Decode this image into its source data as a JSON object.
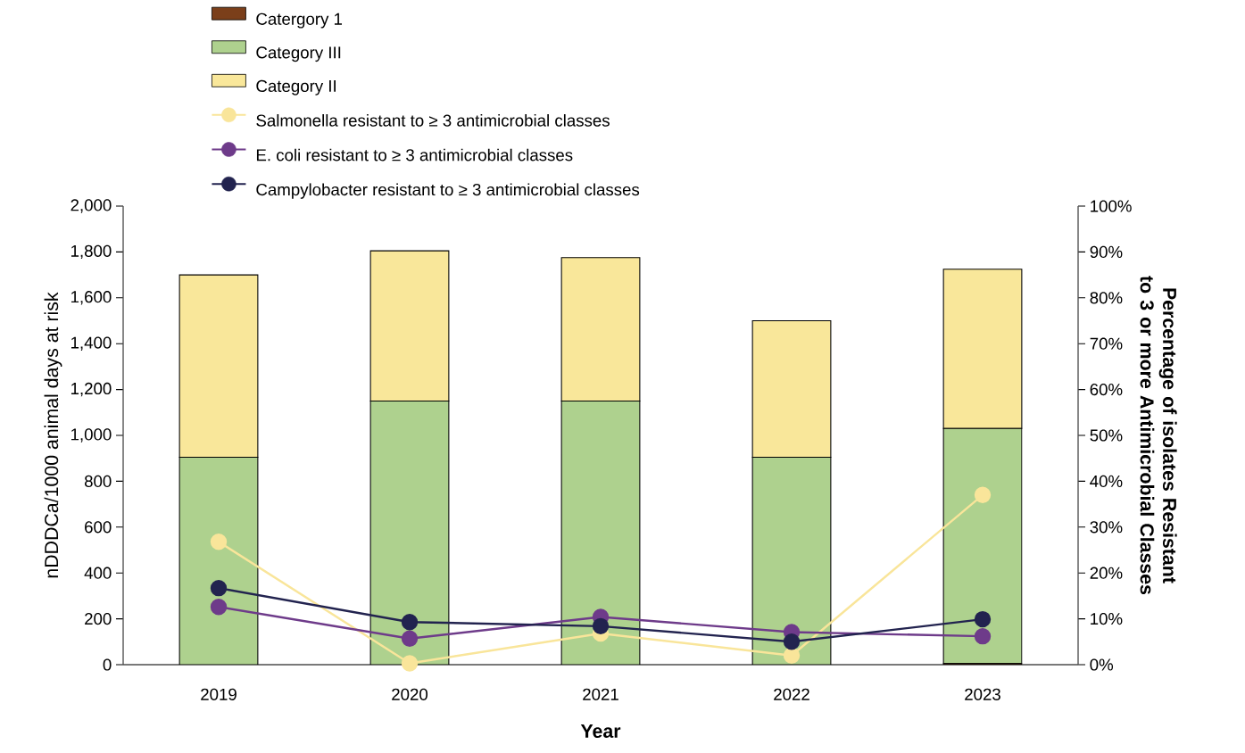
{
  "chart_data": {
    "type": "bar",
    "stacked": true,
    "xlabel": "Year",
    "ylabel": "nDDDCa/1000  animal days at risk",
    "y2label": "Percentage of isolates Resistant to 3 or more Antimicrobial Classes",
    "categories": [
      "2019",
      "2020",
      "2021",
      "2022",
      "2023"
    ],
    "series": [
      {
        "name": "Catergory 1",
        "color": "#7b3f1a",
        "values": [
          0,
          0,
          0,
          0,
          5
        ]
      },
      {
        "name": "Category III",
        "color": "#aed18e",
        "values": [
          905,
          1150,
          1150,
          905,
          1025
        ]
      },
      {
        "name": "Category II",
        "color": "#f9e79a",
        "values": [
          795,
          655,
          625,
          595,
          695
        ]
      },
      {
        "name": "Salmonella resistant to ≥ 3 antimicrobial classes",
        "type": "line",
        "axis": "y2",
        "color": "#f9e59a",
        "values": [
          26.8,
          0.3,
          6.8,
          2.0,
          37.0
        ]
      },
      {
        "name": "E. coli resistant to ≥ 3 antimicrobial classes",
        "type": "line",
        "axis": "y2",
        "color": "#6e3b8a",
        "values": [
          12.6,
          5.7,
          10.4,
          7.1,
          6.2
        ]
      },
      {
        "name": "Campylobacter resistant to ≥ 3 antimicrobial classes",
        "type": "line",
        "axis": "y2",
        "color": "#22234f",
        "values": [
          16.7,
          9.3,
          8.4,
          5.0,
          9.9
        ]
      }
    ],
    "marker": "circle",
    "legend": "top left",
    "ylim": [
      0,
      2000
    ],
    "yticks": [
      0,
      200,
      400,
      600,
      800,
      {
        "value": 1000,
        "label": "1,000"
      },
      {
        "value": 1200,
        "label": "1,200"
      },
      {
        "value": 1400,
        "label": "1,400"
      },
      {
        "value": 1600,
        "label": "1,600"
      },
      {
        "value": 1800,
        "label": "1,800"
      },
      {
        "value": 2000,
        "label": "2,000"
      }
    ],
    "y2lim": [
      0,
      100
    ],
    "y2ticks": [
      {
        "value": 0,
        "label": "0%"
      },
      {
        "value": 10,
        "label": "10%"
      },
      {
        "value": 20,
        "label": "20%"
      },
      {
        "value": 30,
        "label": "30%"
      },
      {
        "value": 40,
        "label": "40%"
      },
      {
        "value": 50,
        "label": "50%"
      },
      {
        "value": 60,
        "label": "60%"
      },
      {
        "value": 70,
        "label": "70%"
      },
      {
        "value": 80,
        "label": "80%"
      },
      {
        "value": 90,
        "label": "90%"
      },
      {
        "value": 100,
        "label": "100%"
      }
    ]
  }
}
